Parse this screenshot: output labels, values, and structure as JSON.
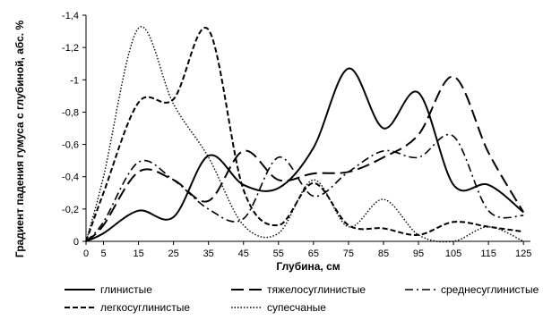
{
  "chart_data": {
    "type": "line",
    "title": "",
    "xlabel": "Глубина, см",
    "ylabel": "Градиент падения гумуса с глубиной, абс. %",
    "x_ticks": [
      "0",
      "5",
      "15",
      "25",
      "35",
      "45",
      "55",
      "65",
      "75",
      "85",
      "95",
      "105",
      "115",
      "125"
    ],
    "y_ticks": [
      "0",
      "-0,2",
      "-0,4",
      "-0,6",
      "-0,8",
      "-1",
      "-1,2",
      "-1,4"
    ],
    "xlim": [
      0,
      127
    ],
    "ylim": [
      0,
      1.4
    ],
    "y_axis_inverted_sign_labels": true,
    "grid": false,
    "legend_position": "bottom",
    "series": [
      {
        "name": "глинистые",
        "style": "solid",
        "width": 2,
        "x": [
          0,
          5,
          15,
          25,
          35,
          45,
          55,
          65,
          75,
          85,
          95,
          105,
          115,
          125
        ],
        "y": [
          0,
          0.05,
          0.19,
          0.15,
          0.53,
          0.35,
          0.33,
          0.58,
          1.07,
          0.7,
          0.92,
          0.35,
          0.35,
          0.18
        ]
      },
      {
        "name": "тяжелосуглинистые",
        "style": "longdash",
        "width": 2,
        "x": [
          0,
          5,
          15,
          25,
          35,
          45,
          55,
          65,
          75,
          85,
          95,
          105,
          115,
          125
        ],
        "y": [
          0,
          0.1,
          0.43,
          0.38,
          0.25,
          0.56,
          0.38,
          0.42,
          0.43,
          0.52,
          0.66,
          1.02,
          0.55,
          0.18
        ]
      },
      {
        "name": "среднесуглинистые",
        "style": "dashdot",
        "width": 1.6,
        "x": [
          0,
          5,
          15,
          25,
          35,
          45,
          55,
          65,
          75,
          85,
          95,
          105,
          115,
          125
        ],
        "y": [
          0,
          0.12,
          0.49,
          0.38,
          0.2,
          0.14,
          0.52,
          0.28,
          0.43,
          0.56,
          0.52,
          0.65,
          0.19,
          0.16
        ]
      },
      {
        "name": "легкосуглинистые",
        "style": "shortdash",
        "width": 2,
        "x": [
          0,
          5,
          15,
          25,
          35,
          45,
          55,
          65,
          75,
          85,
          95,
          105,
          115,
          125
        ],
        "y": [
          0,
          0.3,
          0.86,
          0.88,
          1.31,
          0.32,
          0.1,
          0.36,
          0.1,
          0.08,
          0.04,
          0.12,
          0.09,
          0.06
        ]
      },
      {
        "name": "супесчаные",
        "style": "dotted",
        "width": 1.4,
        "x": [
          0,
          5,
          15,
          25,
          35,
          45,
          55,
          65,
          75,
          85,
          95,
          105,
          115,
          125
        ],
        "y": [
          0,
          0.4,
          1.32,
          0.85,
          0.52,
          0.1,
          0.05,
          0.38,
          0.09,
          0.26,
          0.04,
          0.0,
          0.09,
          0.0
        ]
      }
    ]
  }
}
